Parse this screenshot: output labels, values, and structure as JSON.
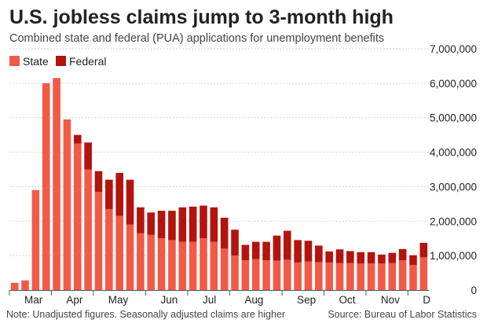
{
  "colors": {
    "state": "#f25a48",
    "federal": "#b3140e",
    "grid": "#d4d4d4",
    "text": "#222222",
    "muted": "#444444"
  },
  "chart_data": {
    "type": "bar",
    "stacked": true,
    "title": "U.S. jobless claims jump to 3-month high",
    "subtitle": "Combined state and federal (PUA) applications for unemployment benefits",
    "legend": {
      "position": "top-left",
      "entries": [
        "State",
        "Federal"
      ]
    },
    "ylim": [
      0,
      7000000
    ],
    "yticks": [
      0,
      1000000,
      2000000,
      3000000,
      4000000,
      5000000,
      6000000,
      7000000
    ],
    "ytick_labels": [
      "0",
      "1,000,000",
      "2,000,000",
      "3,000,000",
      "4,000,000",
      "5,000,000",
      "6,000,000",
      "7,000,000"
    ],
    "grid": true,
    "month_labels": [
      {
        "label": "Mar",
        "start": 0
      },
      {
        "label": "Apr",
        "start": 4
      },
      {
        "label": "May",
        "start": 8
      },
      {
        "label": "Jun",
        "start": 13
      },
      {
        "label": "Jul",
        "start": 17
      },
      {
        "label": "Aug",
        "start": 21
      },
      {
        "label": "Sep",
        "start": 26
      },
      {
        "label": "Oct",
        "start": 30
      },
      {
        "label": "Nov",
        "start": 34
      },
      {
        "label": "D",
        "start": 38
      }
    ],
    "series": [
      {
        "name": "State",
        "values": [
          210000,
          280000,
          2900000,
          6000000,
          6150000,
          4950000,
          4250000,
          3500000,
          2850000,
          2350000,
          2150000,
          1900000,
          1650000,
          1600000,
          1500000,
          1450000,
          1400000,
          1400000,
          1500000,
          1400000,
          1200000,
          1000000,
          860000,
          900000,
          860000,
          850000,
          880000,
          800000,
          830000,
          810000,
          800000,
          780000,
          780000,
          770000,
          770000,
          770000,
          780000,
          860000,
          730000,
          950000
        ]
      },
      {
        "name": "Federal",
        "values": [
          0,
          0,
          0,
          0,
          0,
          0,
          250000,
          780000,
          600000,
          850000,
          1250000,
          1300000,
          750000,
          650000,
          800000,
          850000,
          1000000,
          1020000,
          950000,
          1000000,
          900000,
          750000,
          450000,
          500000,
          540000,
          730000,
          840000,
          650000,
          600000,
          480000,
          320000,
          400000,
          350000,
          330000,
          330000,
          260000,
          300000,
          330000,
          280000,
          420000
        ]
      }
    ]
  },
  "footer": {
    "note": "Note: Unadjusted figures. Seasonally adjusted claims are higher",
    "source": "Source: Bureau of Labor Statistics"
  }
}
